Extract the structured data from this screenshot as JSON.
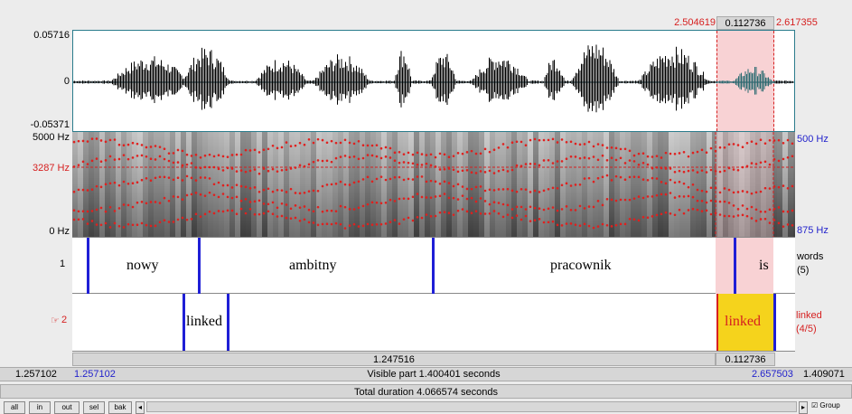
{
  "selection": {
    "start": "2.504619",
    "length": "0.112736",
    "end": "2.617355"
  },
  "waveform": {
    "ymax": "0.05716",
    "zero": "0",
    "ymin": "-0.05371"
  },
  "spectrogram": {
    "fmax": "5000 Hz",
    "cursor_freq": "3287 Hz",
    "fmin": "0 Hz",
    "right_top": "500 Hz",
    "right_bottom": "875 Hz"
  },
  "tier1": {
    "number": "1",
    "name": "words",
    "count": "(5)",
    "words": [
      "nowy",
      "ambitny",
      "pracownik",
      "is"
    ]
  },
  "tier2": {
    "number": "2",
    "pointer": "☞",
    "name": "linked",
    "count": "(4/5)",
    "labels": [
      "linked",
      "linked"
    ]
  },
  "durations": {
    "main": "1.247516",
    "selected": "0.112736"
  },
  "visible": {
    "left_outer": "1.257102",
    "left_inner": "1.257102",
    "text": "Visible part 1.400401 seconds",
    "right_inner": "2.657503",
    "right_outer": "1.409071"
  },
  "total": {
    "text": "Total duration 4.066574 seconds"
  },
  "buttons": {
    "all": "all",
    "in": "in",
    "out": "out",
    "sel": "sel",
    "bak": "bak",
    "group": "Group"
  },
  "colors": {
    "selection": "#f8d2d4",
    "boundary": "#1f1fd6",
    "highlight": "#f5d31c",
    "formant": "#e0201e"
  }
}
